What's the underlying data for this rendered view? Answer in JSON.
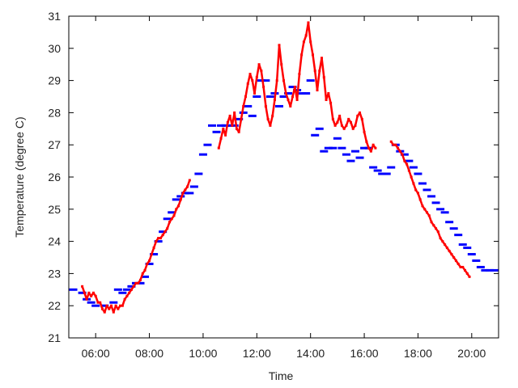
{
  "chart_data": {
    "type": "scatter",
    "title": "",
    "xlabel": "Time",
    "ylabel": "Temperature (degree C)",
    "xlim": [
      "05:00",
      "21:00"
    ],
    "ylim": [
      21,
      31
    ],
    "x_ticks": [
      "06:00",
      "08:00",
      "10:00",
      "12:00",
      "14:00",
      "16:00",
      "18:00",
      "20:00"
    ],
    "y_ticks": [
      21,
      22,
      23,
      24,
      25,
      26,
      27,
      28,
      29,
      30,
      31
    ],
    "grid": false,
    "legend": "none",
    "series": [
      {
        "color": "#0000ff",
        "marker": "horizontal dash",
        "points": [
          [
            "05:10",
            22.5
          ],
          [
            "05:30",
            22.4
          ],
          [
            "05:40",
            22.2
          ],
          [
            "05:50",
            22.1
          ],
          [
            "06:00",
            22.0
          ],
          [
            "06:20",
            22.0
          ],
          [
            "06:40",
            22.1
          ],
          [
            "06:50",
            22.5
          ],
          [
            "07:00",
            22.4
          ],
          [
            "07:10",
            22.5
          ],
          [
            "07:20",
            22.6
          ],
          [
            "07:30",
            22.7
          ],
          [
            "07:40",
            22.7
          ],
          [
            "07:50",
            22.9
          ],
          [
            "08:00",
            23.3
          ],
          [
            "08:10",
            23.6
          ],
          [
            "08:20",
            24.0
          ],
          [
            "08:30",
            24.3
          ],
          [
            "08:40",
            24.7
          ],
          [
            "08:50",
            24.9
          ],
          [
            "09:00",
            25.3
          ],
          [
            "09:10",
            25.4
          ],
          [
            "09:20",
            25.5
          ],
          [
            "09:30",
            25.5
          ],
          [
            "09:40",
            25.7
          ],
          [
            "09:50",
            26.1
          ],
          [
            "10:00",
            26.7
          ],
          [
            "10:10",
            27.0
          ],
          [
            "10:20",
            27.6
          ],
          [
            "10:30",
            27.4
          ],
          [
            "10:40",
            27.6
          ],
          [
            "10:50",
            27.6
          ],
          [
            "11:00",
            27.6
          ],
          [
            "11:10",
            27.6
          ],
          [
            "11:20",
            27.8
          ],
          [
            "11:30",
            28.0
          ],
          [
            "11:40",
            28.2
          ],
          [
            "11:50",
            27.9
          ],
          [
            "12:00",
            28.5
          ],
          [
            "12:10",
            29.0
          ],
          [
            "12:20",
            29.0
          ],
          [
            "12:30",
            28.5
          ],
          [
            "12:40",
            28.6
          ],
          [
            "12:50",
            28.2
          ],
          [
            "13:00",
            28.5
          ],
          [
            "13:10",
            28.6
          ],
          [
            "13:20",
            28.8
          ],
          [
            "13:30",
            28.7
          ],
          [
            "13:40",
            28.6
          ],
          [
            "13:50",
            28.6
          ],
          [
            "14:00",
            29.0
          ],
          [
            "14:10",
            27.3
          ],
          [
            "14:20",
            27.5
          ],
          [
            "14:30",
            26.8
          ],
          [
            "14:40",
            26.9
          ],
          [
            "14:50",
            26.9
          ],
          [
            "15:00",
            27.2
          ],
          [
            "15:10",
            26.9
          ],
          [
            "15:20",
            26.7
          ],
          [
            "15:30",
            26.5
          ],
          [
            "15:40",
            26.8
          ],
          [
            "15:50",
            26.6
          ],
          [
            "16:00",
            26.9
          ],
          [
            "16:10",
            26.9
          ],
          [
            "16:20",
            26.3
          ],
          [
            "16:30",
            26.2
          ],
          [
            "16:40",
            26.1
          ],
          [
            "16:50",
            26.1
          ],
          [
            "17:00",
            26.3
          ],
          [
            "17:10",
            27.0
          ],
          [
            "17:20",
            26.8
          ],
          [
            "17:30",
            26.7
          ],
          [
            "17:40",
            26.5
          ],
          [
            "17:50",
            26.3
          ],
          [
            "18:00",
            26.1
          ],
          [
            "18:10",
            25.8
          ],
          [
            "18:20",
            25.6
          ],
          [
            "18:30",
            25.4
          ],
          [
            "18:40",
            25.2
          ],
          [
            "18:50",
            25.0
          ],
          [
            "19:00",
            24.9
          ],
          [
            "19:10",
            24.6
          ],
          [
            "19:20",
            24.4
          ],
          [
            "19:30",
            24.2
          ],
          [
            "19:40",
            23.9
          ],
          [
            "19:50",
            23.8
          ],
          [
            "20:00",
            23.6
          ],
          [
            "20:10",
            23.4
          ],
          [
            "20:20",
            23.2
          ],
          [
            "20:30",
            23.1
          ],
          [
            "20:40",
            23.1
          ],
          [
            "20:50",
            23.1
          ]
        ]
      },
      {
        "color": "#ff0000",
        "marker": "dense dots",
        "points": [
          [
            "05:30",
            22.6
          ],
          [
            "05:35",
            22.4
          ],
          [
            "05:40",
            22.2
          ],
          [
            "05:45",
            22.4
          ],
          [
            "05:50",
            22.3
          ],
          [
            "05:55",
            22.4
          ],
          [
            "06:00",
            22.3
          ],
          [
            "06:05",
            22.1
          ],
          [
            "06:10",
            22.1
          ],
          [
            "06:15",
            21.9
          ],
          [
            "06:20",
            21.8
          ],
          [
            "06:25",
            22.0
          ],
          [
            "06:30",
            21.9
          ],
          [
            "06:35",
            22.0
          ],
          [
            "06:40",
            21.8
          ],
          [
            "06:45",
            22.0
          ],
          [
            "06:50",
            21.9
          ],
          [
            "06:55",
            22.0
          ],
          [
            "07:00",
            22.0
          ],
          [
            "07:05",
            22.2
          ],
          [
            "07:10",
            22.3
          ],
          [
            "07:15",
            22.4
          ],
          [
            "07:20",
            22.5
          ],
          [
            "07:25",
            22.6
          ],
          [
            "07:30",
            22.7
          ],
          [
            "07:35",
            22.7
          ],
          [
            "07:40",
            22.8
          ],
          [
            "07:45",
            23.0
          ],
          [
            "07:50",
            23.1
          ],
          [
            "07:55",
            23.3
          ],
          [
            "08:00",
            23.4
          ],
          [
            "08:05",
            23.6
          ],
          [
            "08:10",
            23.8
          ],
          [
            "08:15",
            24.0
          ],
          [
            "08:20",
            24.1
          ],
          [
            "08:25",
            24.1
          ],
          [
            "08:30",
            24.2
          ],
          [
            "08:35",
            24.3
          ],
          [
            "08:40",
            24.4
          ],
          [
            "08:45",
            24.6
          ],
          [
            "08:50",
            24.7
          ],
          [
            "08:55",
            24.8
          ],
          [
            "09:00",
            25.0
          ],
          [
            "09:05",
            25.1
          ],
          [
            "09:10",
            25.3
          ],
          [
            "09:15",
            25.5
          ],
          [
            "09:20",
            25.6
          ],
          [
            "09:25",
            25.7
          ],
          [
            "09:30",
            25.9
          ],
          [
            "10:35",
            26.9
          ],
          [
            "10:40",
            27.2
          ],
          [
            "10:45",
            27.5
          ],
          [
            "10:50",
            27.3
          ],
          [
            "10:55",
            27.7
          ],
          [
            "11:00",
            27.9
          ],
          [
            "11:05",
            27.6
          ],
          [
            "11:10",
            28.0
          ],
          [
            "11:15",
            27.5
          ],
          [
            "11:20",
            27.4
          ],
          [
            "11:25",
            27.8
          ],
          [
            "11:30",
            28.2
          ],
          [
            "11:35",
            28.5
          ],
          [
            "11:40",
            28.9
          ],
          [
            "11:45",
            29.2
          ],
          [
            "11:50",
            29.0
          ],
          [
            "11:55",
            28.6
          ],
          [
            "12:00",
            29.1
          ],
          [
            "12:05",
            29.5
          ],
          [
            "12:10",
            29.3
          ],
          [
            "12:15",
            28.8
          ],
          [
            "12:20",
            28.2
          ],
          [
            "12:25",
            27.8
          ],
          [
            "12:30",
            27.6
          ],
          [
            "12:35",
            27.9
          ],
          [
            "12:40",
            28.4
          ],
          [
            "12:45",
            29.0
          ],
          [
            "12:50",
            30.1
          ],
          [
            "12:55",
            29.5
          ],
          [
            "13:00",
            29.0
          ],
          [
            "13:05",
            28.6
          ],
          [
            "13:10",
            28.4
          ],
          [
            "13:15",
            28.2
          ],
          [
            "13:20",
            28.5
          ],
          [
            "13:25",
            28.8
          ],
          [
            "13:30",
            28.4
          ],
          [
            "13:35",
            29.2
          ],
          [
            "13:40",
            29.8
          ],
          [
            "13:45",
            30.2
          ],
          [
            "13:50",
            30.4
          ],
          [
            "13:55",
            30.8
          ],
          [
            "14:00",
            30.2
          ],
          [
            "14:05",
            29.8
          ],
          [
            "14:10",
            29.3
          ],
          [
            "14:15",
            28.7
          ],
          [
            "14:20",
            29.3
          ],
          [
            "14:25",
            29.7
          ],
          [
            "14:30",
            29.1
          ],
          [
            "14:35",
            28.4
          ],
          [
            "14:40",
            28.6
          ],
          [
            "14:45",
            28.3
          ],
          [
            "14:50",
            27.8
          ],
          [
            "14:55",
            27.6
          ],
          [
            "15:00",
            27.7
          ],
          [
            "15:05",
            27.9
          ],
          [
            "15:10",
            27.6
          ],
          [
            "15:15",
            27.5
          ],
          [
            "15:20",
            27.6
          ],
          [
            "15:25",
            27.8
          ],
          [
            "15:30",
            27.7
          ],
          [
            "15:35",
            27.5
          ],
          [
            "15:40",
            27.6
          ],
          [
            "15:45",
            27.9
          ],
          [
            "15:50",
            28.0
          ],
          [
            "15:55",
            27.8
          ],
          [
            "16:00",
            27.4
          ],
          [
            "16:05",
            27.1
          ],
          [
            "16:10",
            26.9
          ],
          [
            "16:15",
            26.8
          ],
          [
            "16:20",
            27.0
          ],
          [
            "16:25",
            26.9
          ],
          [
            "17:00",
            27.1
          ],
          [
            "17:05",
            27.0
          ],
          [
            "17:10",
            27.0
          ],
          [
            "17:15",
            26.9
          ],
          [
            "17:20",
            26.8
          ],
          [
            "17:25",
            26.7
          ],
          [
            "17:30",
            26.5
          ],
          [
            "17:35",
            26.4
          ],
          [
            "17:40",
            26.2
          ],
          [
            "17:45",
            26.0
          ],
          [
            "17:50",
            25.8
          ],
          [
            "17:55",
            25.6
          ],
          [
            "18:00",
            25.5
          ],
          [
            "18:05",
            25.3
          ],
          [
            "18:10",
            25.1
          ],
          [
            "18:15",
            25.0
          ],
          [
            "18:20",
            24.9
          ],
          [
            "18:25",
            24.8
          ],
          [
            "18:30",
            24.6
          ],
          [
            "18:35",
            24.5
          ],
          [
            "18:40",
            24.4
          ],
          [
            "18:45",
            24.3
          ],
          [
            "18:50",
            24.1
          ],
          [
            "18:55",
            24.0
          ],
          [
            "19:00",
            23.9
          ],
          [
            "19:05",
            23.8
          ],
          [
            "19:10",
            23.7
          ],
          [
            "19:15",
            23.6
          ],
          [
            "19:20",
            23.5
          ],
          [
            "19:25",
            23.4
          ],
          [
            "19:30",
            23.3
          ],
          [
            "19:35",
            23.2
          ],
          [
            "19:40",
            23.2
          ],
          [
            "19:45",
            23.1
          ],
          [
            "19:50",
            23.0
          ],
          [
            "19:55",
            22.9
          ]
        ]
      }
    ]
  },
  "colors": {
    "frame": "#000000",
    "text": "#222222",
    "background": "#ffffff"
  }
}
